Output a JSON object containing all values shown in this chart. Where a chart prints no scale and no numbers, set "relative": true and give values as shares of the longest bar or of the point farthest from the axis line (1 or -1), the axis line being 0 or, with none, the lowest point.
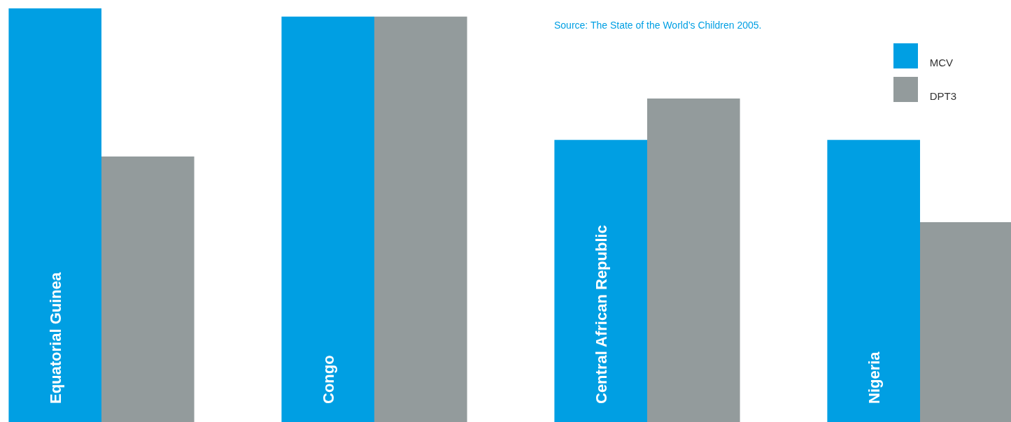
{
  "chart_data": {
    "type": "bar",
    "relative": true,
    "categories": [
      "Equatorial Guinea",
      "Congo",
      "Central African Republic",
      "Nigeria"
    ],
    "series": [
      {
        "name": "MCV",
        "color": "#009fe3",
        "values": [
          1,
          0.98,
          0.682,
          0.682
        ]
      },
      {
        "name": "DPT3",
        "color": "#939b9c",
        "values": [
          0.642,
          0.98,
          0.782,
          0.483
        ]
      }
    ],
    "legend": "top right",
    "annotations": [
      "Source: The State of the World’s Children 2005."
    ]
  }
}
